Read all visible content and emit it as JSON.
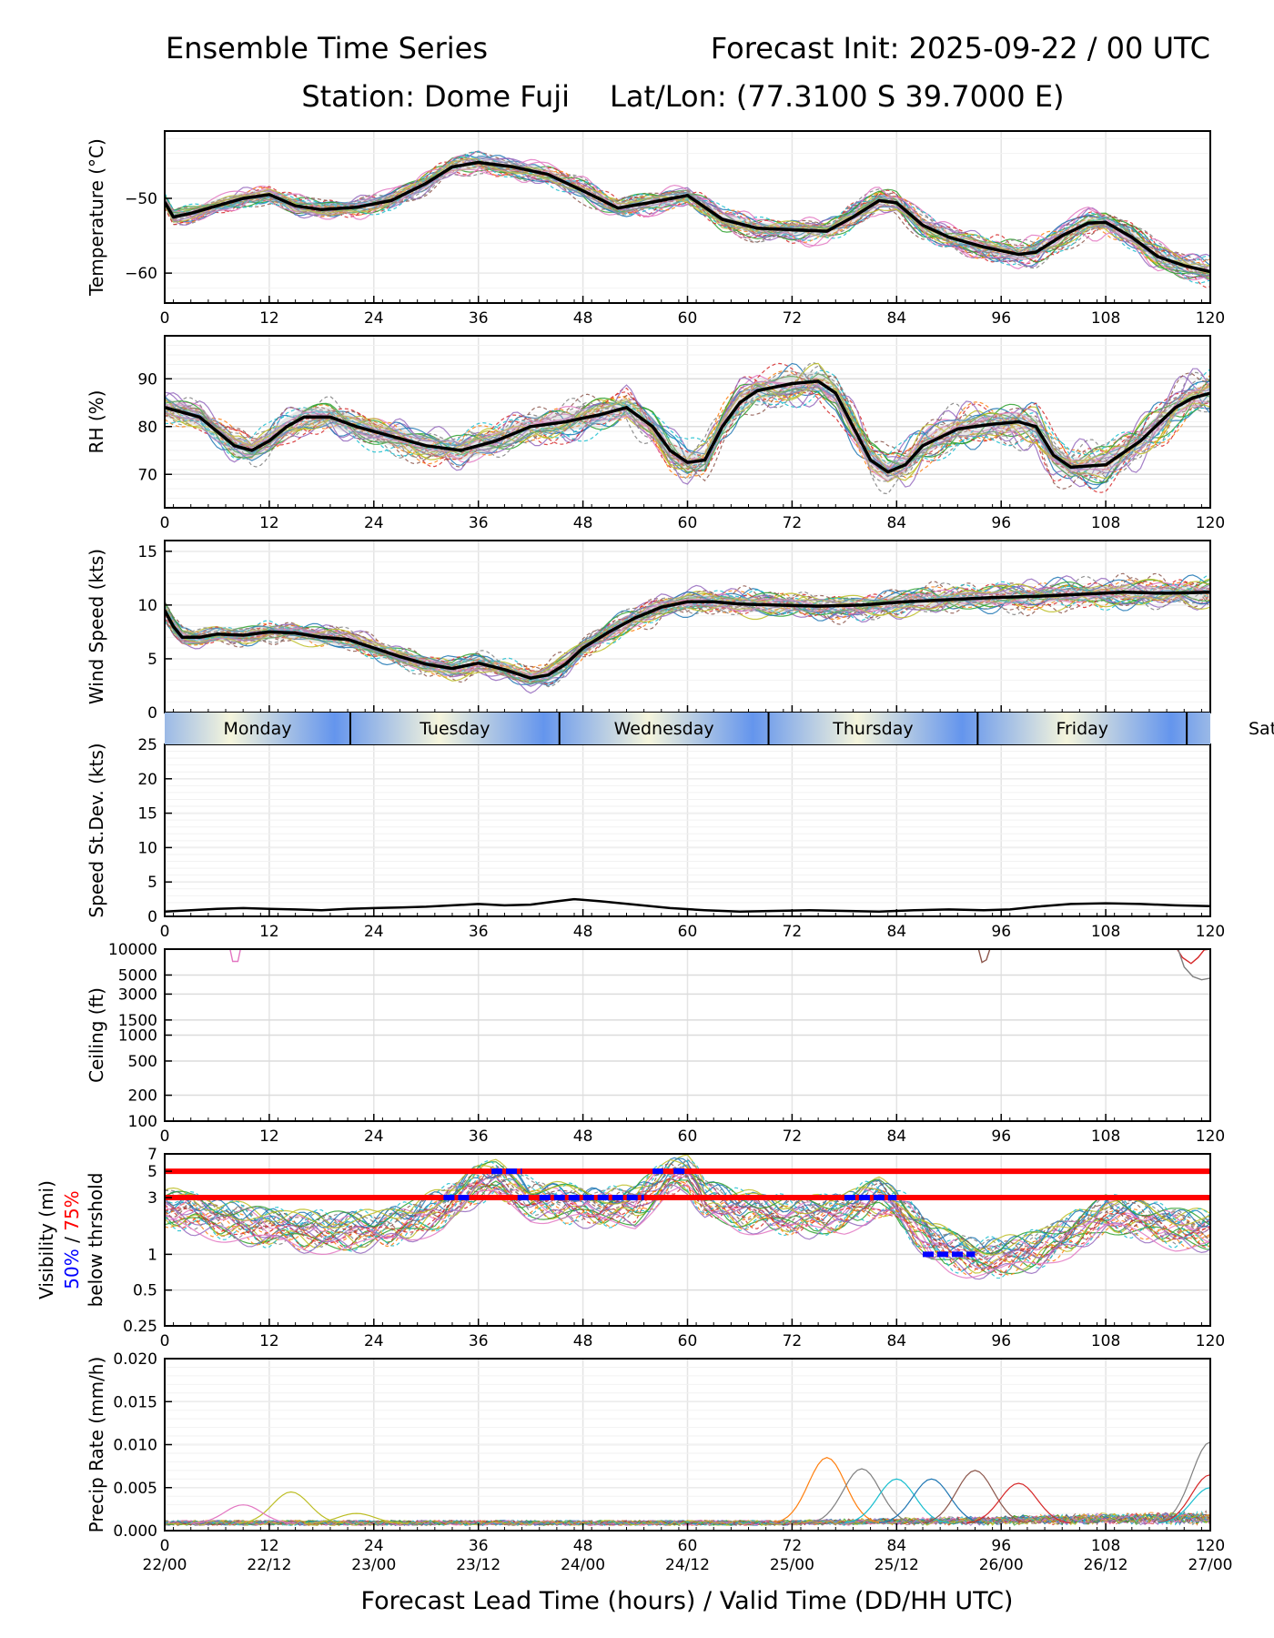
{
  "header": {
    "title_left": "Ensemble Time Series",
    "title_right": "Forecast Init: 2025-09-22 / 00 UTC",
    "station": "Station: Dome Fuji",
    "latlon": "Lat/Lon: (77.3100 S 39.7000 E)"
  },
  "x_axis": {
    "ticks": [
      0,
      12,
      24,
      36,
      48,
      60,
      72,
      84,
      96,
      108,
      120
    ],
    "valid_times": [
      "22/00",
      "22/12",
      "23/00",
      "23/12",
      "24/00",
      "24/12",
      "25/00",
      "25/12",
      "26/00",
      "26/12",
      "27/00"
    ],
    "label": "Forecast Lead Time (hours) / Valid Time (DD/HH UTC)"
  },
  "day_bar": {
    "days": [
      "Monday",
      "Tuesday",
      "Wednesday",
      "Thursday",
      "Friday",
      "Sat"
    ],
    "dividers": [
      21.3,
      45.3,
      69.3,
      93.3,
      117.3
    ],
    "colors": {
      "light": "#f5f5dc",
      "dark": "#6495ed"
    }
  },
  "colors": {
    "mean": "#000000",
    "members": [
      "#1f77b4",
      "#ff7f0e",
      "#2ca02c",
      "#d62728",
      "#9467bd",
      "#8c564b",
      "#e377c2",
      "#7f7f7f",
      "#bcbd22",
      "#17becf"
    ],
    "threshold": "#ff0000",
    "prob_50": "#0000ff",
    "prob_75": "#ff0000"
  },
  "chart_data": [
    {
      "type": "line",
      "id": "temperature",
      "ylabel": "Temperature (°C)",
      "ylim": [
        -64,
        -41
      ],
      "yticks": [
        -60,
        -50
      ],
      "ytick_labels": [
        "−60",
        "−50"
      ],
      "x": [
        0,
        1,
        3,
        6,
        9,
        12,
        15,
        18,
        22,
        26,
        30,
        33,
        36,
        40,
        44,
        48,
        52,
        56,
        60,
        64,
        68,
        72,
        76,
        79,
        82,
        84,
        87,
        90,
        94,
        98,
        100,
        103,
        106,
        108,
        111,
        114,
        117,
        120
      ],
      "mean": [
        -50.5,
        -52.5,
        -52,
        -51,
        -50,
        -49.5,
        -51,
        -51.5,
        -51.2,
        -50.3,
        -48,
        -45.8,
        -45.2,
        -45.8,
        -46.8,
        -49,
        -51.3,
        -50.5,
        -49.6,
        -52.8,
        -54,
        -54.2,
        -54.4,
        -52.5,
        -50.3,
        -50.6,
        -53.6,
        -55.2,
        -56.5,
        -57.5,
        -57.2,
        -55,
        -53.3,
        -53.2,
        -55.2,
        -57.8,
        -59,
        -59.8
      ],
      "member_count": 30,
      "spread": 1.8
    },
    {
      "type": "line",
      "id": "rh",
      "ylabel": "RH (%)",
      "ylim": [
        63,
        99
      ],
      "yticks": [
        70,
        80,
        90
      ],
      "ytick_labels": [
        "70",
        "80",
        "90"
      ],
      "x": [
        0,
        2,
        4,
        6,
        8,
        10,
        12,
        14,
        16,
        19,
        22,
        26,
        30,
        34,
        38,
        42,
        46,
        50,
        53,
        56,
        58,
        60,
        62,
        64,
        66,
        68,
        72,
        75,
        77,
        79,
        81,
        83,
        85,
        87,
        91,
        95,
        98,
        100,
        102,
        104,
        108,
        112,
        116,
        118,
        120
      ],
      "mean": [
        84,
        83,
        82,
        79,
        76,
        75,
        77,
        80,
        82,
        82,
        80,
        78,
        76,
        75,
        77,
        80,
        81,
        82.5,
        84,
        80,
        75,
        72.5,
        73,
        80,
        85,
        87.5,
        89,
        89.5,
        87,
        80,
        73,
        70.5,
        72,
        76,
        79.5,
        80.5,
        81,
        80,
        74,
        71.5,
        72,
        77,
        84,
        86,
        87
      ],
      "member_count": 30,
      "spread": 4.5
    },
    {
      "type": "line",
      "id": "wind_speed",
      "ylabel": "Wind Speed (kts)",
      "ylim": [
        0,
        16
      ],
      "yticks": [
        0,
        5,
        10,
        15
      ],
      "ytick_labels": [
        "0",
        "5",
        "10",
        "15"
      ],
      "x": [
        0,
        1,
        2,
        4,
        6,
        9,
        12,
        15,
        18,
        21,
        24,
        27,
        30,
        33,
        36,
        39,
        42,
        44,
        46,
        48,
        51,
        54,
        57,
        60,
        63,
        66,
        70,
        75,
        80,
        85,
        90,
        95,
        100,
        105,
        110,
        115,
        120
      ],
      "mean": [
        9.5,
        8,
        7,
        7,
        7.3,
        7.2,
        7.5,
        7.4,
        7,
        6.8,
        6,
        5.2,
        4.5,
        4.1,
        4.6,
        4,
        3.2,
        3.5,
        4.5,
        6,
        7.5,
        8.8,
        9.8,
        10.3,
        10.3,
        10.1,
        10,
        9.9,
        10,
        10.3,
        10.5,
        10.7,
        10.8,
        11,
        11.2,
        11.1,
        11.2
      ],
      "member_count": 30,
      "spread": 1.4
    },
    {
      "type": "line",
      "id": "speed_stdev",
      "ylabel": "Speed St.Dev. (kts)",
      "ylim": [
        0,
        25
      ],
      "yticks": [
        0,
        5,
        10,
        15,
        20,
        25
      ],
      "ytick_labels": [
        "0",
        "5",
        "10",
        "15",
        "20",
        "25"
      ],
      "x": [
        0,
        3,
        6,
        9,
        12,
        15,
        18,
        21,
        24,
        27,
        30,
        33,
        36,
        39,
        42,
        45,
        47,
        50,
        54,
        58,
        62,
        66,
        70,
        74,
        78,
        82,
        86,
        90,
        94,
        97,
        100,
        104,
        108,
        112,
        116,
        120
      ],
      "mean": [
        0.7,
        0.9,
        1.1,
        1.2,
        1.1,
        1,
        0.9,
        1.1,
        1.2,
        1.3,
        1.4,
        1.6,
        1.8,
        1.6,
        1.7,
        2.2,
        2.5,
        2.2,
        1.7,
        1.2,
        0.9,
        0.7,
        0.8,
        0.9,
        0.8,
        0.7,
        0.9,
        1,
        0.9,
        1,
        1.4,
        1.8,
        1.9,
        1.8,
        1.6,
        1.5
      ]
    },
    {
      "type": "line",
      "id": "ceiling",
      "ylabel": "Ceiling (ft)",
      "scale": "log",
      "ylim": [
        100,
        10000
      ],
      "yticks": [
        100,
        200,
        500,
        1000,
        1500,
        3000,
        5000,
        10000
      ],
      "ytick_labels": [
        "100",
        "200",
        "500",
        "1000",
        "1500",
        "3000",
        "5000",
        "10000"
      ],
      "segments": [
        {
          "color": "#e377c2",
          "x": [
            7.5,
            7.8,
            8.4,
            8.7
          ],
          "y": [
            10000,
            7200,
            7200,
            10000
          ]
        },
        {
          "color": "#8c564b",
          "x": [
            93.4,
            93.8,
            94.3,
            94.7
          ],
          "y": [
            10000,
            7000,
            7500,
            10000
          ]
        },
        {
          "color": "#d62728",
          "x": [
            116.2,
            116.8,
            117.8,
            118.6,
            119.3,
            120
          ],
          "y": [
            10000,
            8000,
            6800,
            8000,
            9800,
            10000
          ]
        },
        {
          "color": "#7f7f7f",
          "x": [
            116.3,
            117,
            118,
            119,
            120
          ],
          "y": [
            10000,
            6200,
            4800,
            4400,
            4600
          ]
        }
      ]
    },
    {
      "type": "line",
      "id": "visibility",
      "ylabel_line1": "Visibility (mi)",
      "ylabel_50": "50%",
      "ylabel_sep": " / ",
      "ylabel_75": "75%",
      "ylabel_line3": "below thrshold",
      "scale": "log",
      "ylim": [
        0.25,
        7
      ],
      "yticks": [
        0.25,
        0.5,
        1,
        3,
        5,
        7
      ],
      "ytick_labels": [
        "0.25",
        "0.5",
        "1",
        "3",
        "5",
        "7"
      ],
      "thresholds": [
        5,
        3
      ],
      "x": [
        0,
        4,
        8,
        12,
        16,
        20,
        24,
        28,
        32,
        34,
        36,
        38,
        40,
        42,
        44,
        46,
        50,
        54,
        56,
        58,
        60,
        62,
        66,
        70,
        74,
        78,
        80,
        82,
        84,
        86,
        88,
        90,
        92,
        94,
        96,
        100,
        104,
        108,
        112,
        116,
        120
      ],
      "median": [
        2.5,
        2.2,
        1.9,
        1.7,
        1.6,
        1.6,
        1.6,
        1.9,
        2.5,
        3.2,
        4,
        4.2,
        3.6,
        3,
        2.8,
        2.7,
        2.5,
        2.6,
        3.5,
        4.5,
        4.6,
        3,
        2.4,
        2.2,
        2.1,
        2.3,
        2.7,
        3,
        2.6,
        1.8,
        1.3,
        1.1,
        1,
        0.95,
        0.95,
        1.1,
        1.5,
        2.2,
        2,
        1.7,
        1.6
      ],
      "prob_below_50": [
        {
          "x": [
            37.5,
            41
          ],
          "y": 5
        },
        {
          "x": [
            56,
            57.2
          ],
          "y": 5
        },
        {
          "x": [
            58.4,
            60
          ],
          "y": 5
        },
        {
          "x": [
            32,
            35
          ],
          "y": 3
        },
        {
          "x": [
            40.5,
            42
          ],
          "y": 3
        },
        {
          "x": [
            43,
            55
          ],
          "y": 3
        },
        {
          "x": [
            78,
            84
          ],
          "y": 3
        },
        {
          "x": [
            87,
            93
          ],
          "y": 1
        }
      ],
      "member_count": 30
    },
    {
      "type": "line",
      "id": "precip_rate",
      "ylabel": "Precip Rate (mm/h)",
      "ylim": [
        0,
        0.02
      ],
      "yticks": [
        0,
        0.005,
        0.01,
        0.015,
        0.02
      ],
      "ytick_labels": [
        "0.000",
        "0.005",
        "0.010",
        "0.015",
        "0.020"
      ],
      "peaks": [
        {
          "x": 14.5,
          "y": 0.0045,
          "color": "#bcbd22"
        },
        {
          "x": 9,
          "y": 0.003,
          "color": "#e377c2"
        },
        {
          "x": 22,
          "y": 0.002,
          "color": "#bcbd22"
        },
        {
          "x": 76,
          "y": 0.0085,
          "color": "#ff7f0e"
        },
        {
          "x": 80,
          "y": 0.0072,
          "color": "#7f7f7f"
        },
        {
          "x": 84,
          "y": 0.006,
          "color": "#17becf"
        },
        {
          "x": 88,
          "y": 0.006,
          "color": "#1f77b4"
        },
        {
          "x": 93,
          "y": 0.007,
          "color": "#8c564b"
        },
        {
          "x": 98,
          "y": 0.0055,
          "color": "#d62728"
        },
        {
          "x": 120,
          "y": 0.0103,
          "color": "#7f7f7f"
        },
        {
          "x": 120,
          "y": 0.0065,
          "color": "#d62728"
        },
        {
          "x": 120,
          "y": 0.005,
          "color": "#17becf"
        }
      ]
    }
  ]
}
